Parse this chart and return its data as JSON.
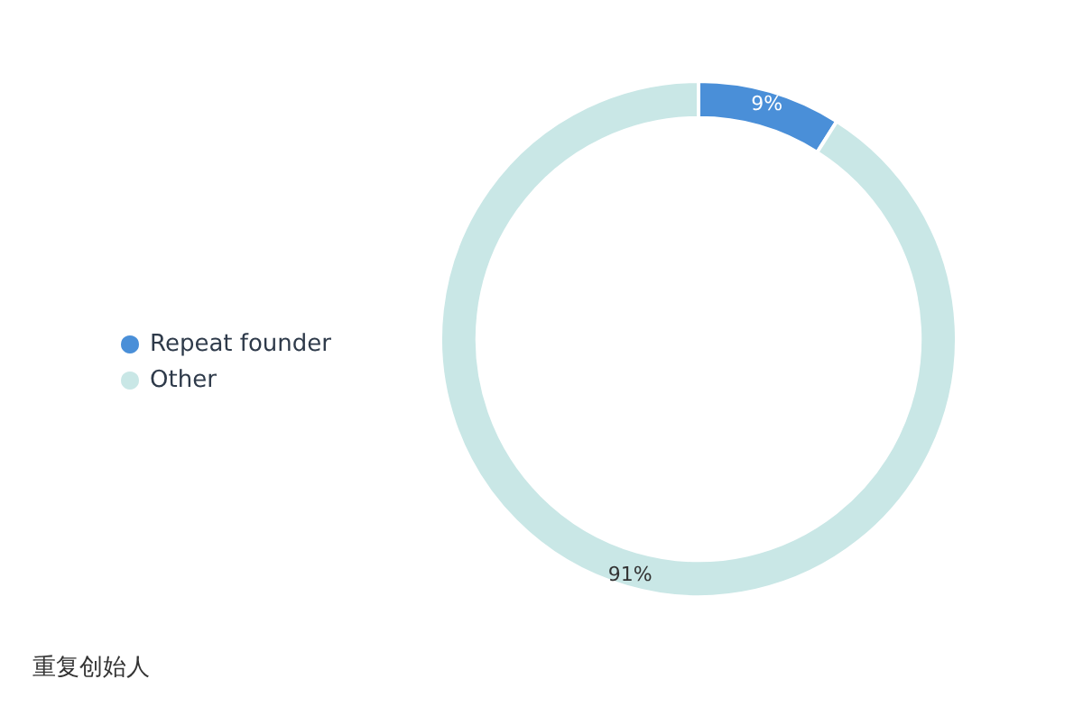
{
  "chart_data": {
    "type": "donut",
    "categories": [
      "Repeat founder",
      "Other"
    ],
    "values": [
      9,
      91
    ],
    "colors": [
      "#4a8fd8",
      "#c9e7e6"
    ],
    "value_labels": [
      "9%",
      "91%"
    ],
    "legend": "left",
    "annotations": [
      "重复创始人"
    ]
  }
}
